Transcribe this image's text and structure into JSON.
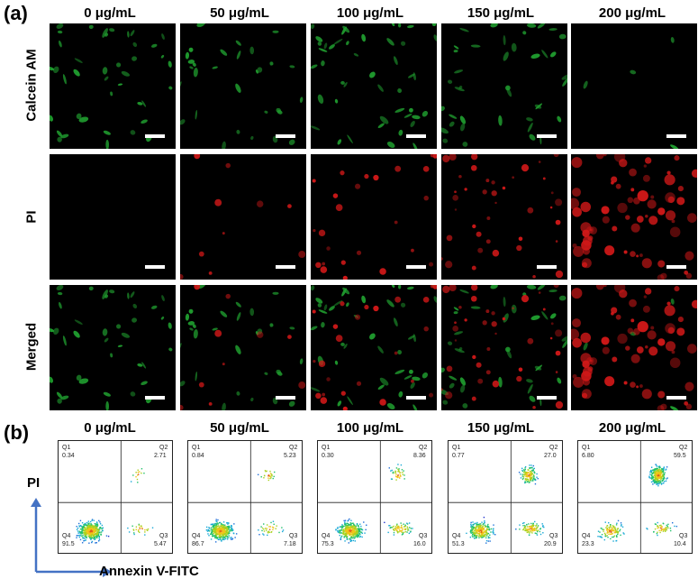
{
  "panel_a": {
    "label": "(a)",
    "columns": [
      "0 μg/mL",
      "50 μg/mL",
      "100 μg/mL",
      "150 μg/mL",
      "200 μg/mL"
    ],
    "rows": [
      "Calcein AM",
      "PI",
      "Merged"
    ]
  },
  "panel_b": {
    "label": "(b)",
    "columns": [
      "0 μg/mL",
      "50 μg/mL",
      "100 μg/mL",
      "150 μg/mL",
      "200 μg/mL"
    ],
    "y_label": "PI",
    "x_label": "Annexin V-FITC",
    "plots": [
      {
        "q1": "Q1",
        "v1": "0.34",
        "q2": "Q2",
        "v2": "2.71",
        "q3": "Q3",
        "v3": "5.47",
        "q4": "Q4",
        "v4": "91.5"
      },
      {
        "q1": "Q1",
        "v1": "0.84",
        "q2": "Q2",
        "v2": "5.23",
        "q3": "Q3",
        "v3": "7.18",
        "q4": "Q4",
        "v4": "86.7"
      },
      {
        "q1": "Q1",
        "v1": "0.30",
        "q2": "Q2",
        "v2": "8.36",
        "q3": "Q3",
        "v3": "16.0",
        "q4": "Q4",
        "v4": "75.3"
      },
      {
        "q1": "Q1",
        "v1": "0.77",
        "q2": "Q2",
        "v2": "27.0",
        "q3": "Q3",
        "v3": "20.9",
        "q4": "Q4",
        "v4": "51.3"
      },
      {
        "q1": "Q1",
        "v1": "6.80",
        "q2": "Q2",
        "v2": "59.5",
        "q3": "Q3",
        "v3": "10.4",
        "q4": "Q4",
        "v4": "23.3"
      }
    ]
  },
  "colors": {
    "green": "#1f9a2e",
    "red": "#d01818",
    "bg": "#000000"
  }
}
